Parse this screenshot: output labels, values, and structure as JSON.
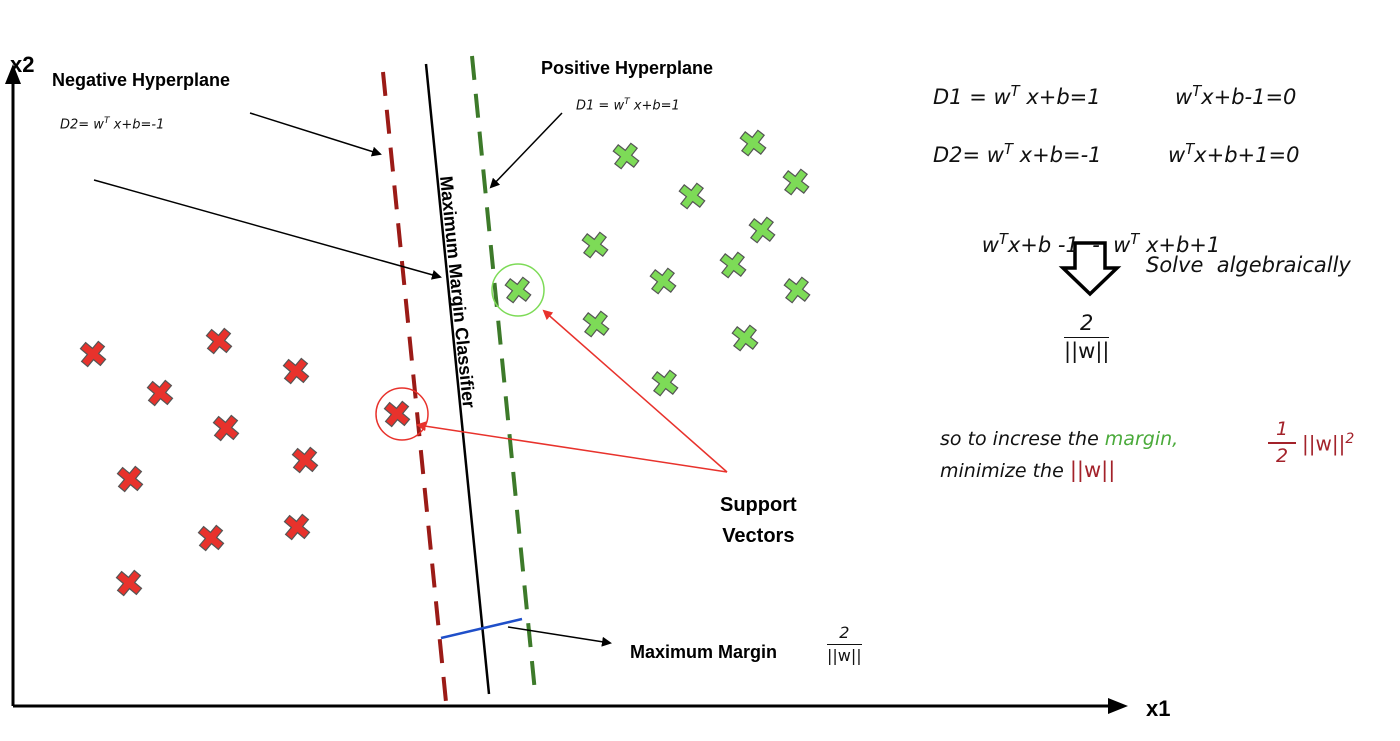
{
  "axes": {
    "x_label": "x1",
    "y_label": "x2"
  },
  "labels": {
    "negative_hyperplane": "Negative Hyperplane",
    "positive_hyperplane": "Positive Hyperplane",
    "classifier": "Maximum Margin Classifier",
    "support_vectors_line1": "Support",
    "support_vectors_line2": "Vectors",
    "maximum_margin": "Maximum Margin"
  },
  "equations": {
    "d2_left": {
      "pre": "D2= w",
      "sup": "T",
      "post": " x+b=-1"
    },
    "d1_left": {
      "pre": "D1 = w",
      "sup": "T",
      "post": " x+b=1"
    },
    "d1_right": {
      "pre": "D1 = w",
      "sup": "T",
      "post": " x+b=1"
    },
    "d1_right_alt": {
      "pre": "w",
      "sup": "T",
      "post": "x+b-1=0"
    },
    "d2_right": {
      "pre": "D2= w",
      "sup": "T",
      "post": " x+b=-1"
    },
    "d2_right_alt": {
      "pre": "w",
      "sup": "T",
      "post": "x+b+1=0"
    },
    "difference": {
      "a_pre": "w",
      "a_sup": "T",
      "a_post": "x+b -1  -  w",
      "b_sup": "T",
      "b_post": " x+b+1"
    },
    "solve": "Solve  algebraically",
    "result_num": "2",
    "result_den": "||w||",
    "increase_line1_a": "so to increse the ",
    "increase_line1_b": "margin,",
    "increase_line2_a": "minimize the ",
    "increase_line2_b": "||w||",
    "objective_num": "1",
    "objective_den": "2",
    "objective_tail": "||w||",
    "objective_sup": "2",
    "margin_num": "2",
    "margin_den": "||w||"
  },
  "colors": {
    "negative": "#e8322c",
    "positive": "#7ddb57",
    "negative_plane": "#9b1b17",
    "positive_plane": "#3d7a2a",
    "margin_line": "#1f4fc9",
    "annotation_red": "#e8322c",
    "margin_word": "#4aaa3a",
    "norm_red": "#a3222a"
  },
  "points": {
    "negative": [
      [
        93,
        354
      ],
      [
        219,
        341
      ],
      [
        296,
        371
      ],
      [
        160,
        393
      ],
      [
        226,
        428
      ],
      [
        305,
        460
      ],
      [
        130,
        479
      ],
      [
        297,
        527
      ],
      [
        211,
        538
      ],
      [
        129,
        583
      ],
      [
        397,
        414
      ]
    ],
    "positive": [
      [
        626,
        156
      ],
      [
        753,
        143
      ],
      [
        692,
        196
      ],
      [
        796,
        182
      ],
      [
        762,
        230
      ],
      [
        595,
        245
      ],
      [
        663,
        281
      ],
      [
        733,
        265
      ],
      [
        797,
        290
      ],
      [
        596,
        324
      ],
      [
        745,
        338
      ],
      [
        665,
        383
      ],
      [
        518,
        290
      ]
    ]
  },
  "support_vectors": [
    {
      "center": [
        402,
        414
      ],
      "radius": 26,
      "kind": "negative"
    },
    {
      "center": [
        518,
        290
      ],
      "radius": 26,
      "kind": "positive"
    }
  ]
}
